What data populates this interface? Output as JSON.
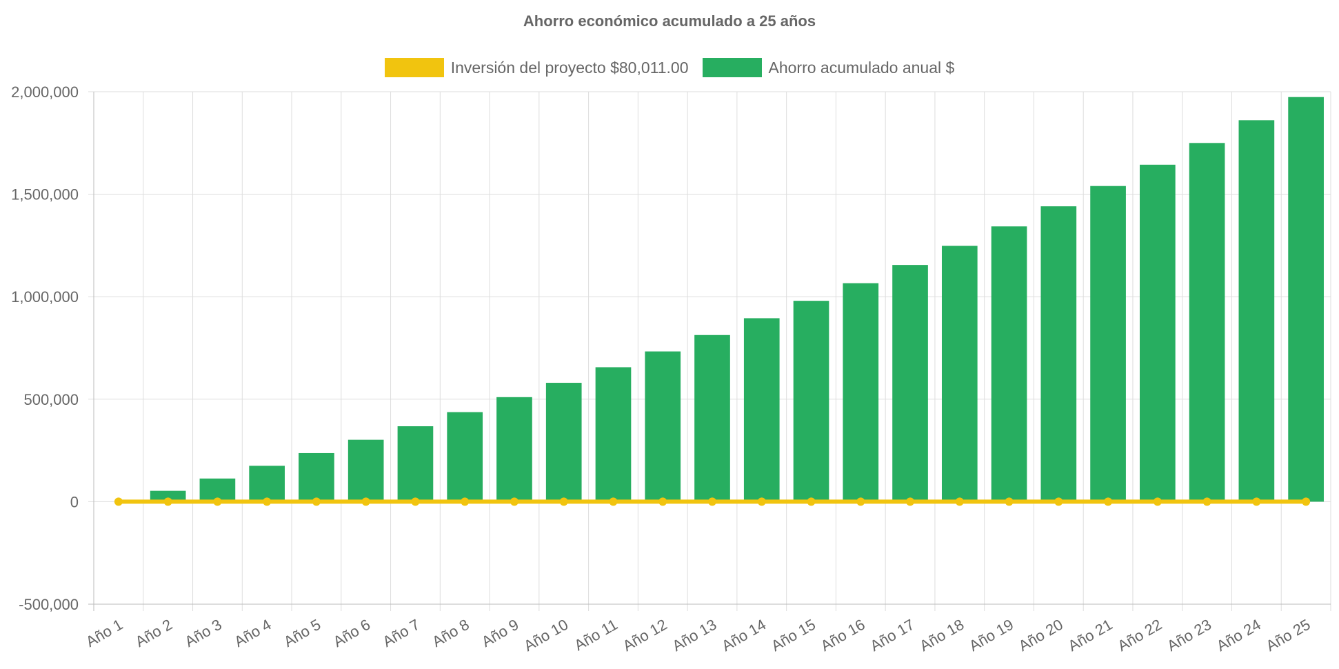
{
  "chart_data": {
    "type": "bar",
    "title": "Ahorro económico acumulado a 25 años",
    "categories": [
      "Año 1",
      "Año 2",
      "Año 3",
      "Año 4",
      "Año 5",
      "Año 6",
      "Año 7",
      "Año 8",
      "Año 9",
      "Año 10",
      "Año 11",
      "Año 12",
      "Año 13",
      "Año 14",
      "Año 15",
      "Año 16",
      "Año 17",
      "Año 18",
      "Año 19",
      "Año 20",
      "Año 21",
      "Año 22",
      "Año 23",
      "Año 24",
      "Año 25"
    ],
    "series": [
      {
        "name": "Inversión del proyecto $80,011.00",
        "type": "line",
        "color": "#f1c40f",
        "values": [
          0,
          0,
          0,
          0,
          0,
          0,
          0,
          0,
          0,
          0,
          0,
          0,
          0,
          0,
          0,
          0,
          0,
          0,
          0,
          0,
          0,
          0,
          0,
          0,
          0
        ]
      },
      {
        "name": "Ahorro acumulado anual $",
        "type": "bar",
        "color": "#27ae60",
        "values": [
          0,
          53000,
          113000,
          175000,
          237000,
          302000,
          368000,
          437000,
          510000,
          580000,
          656000,
          733000,
          813000,
          895000,
          980000,
          1066000,
          1155000,
          1248000,
          1343000,
          1441000,
          1540000,
          1644000,
          1750000,
          1861000,
          1974000
        ]
      }
    ],
    "yticks": [
      "2,000,000",
      "1,500,000",
      "1,000,000",
      "500,000",
      "0",
      "-500,000"
    ],
    "ylim": [
      -500000,
      2000000
    ],
    "grid": true,
    "legend_position": "top"
  }
}
